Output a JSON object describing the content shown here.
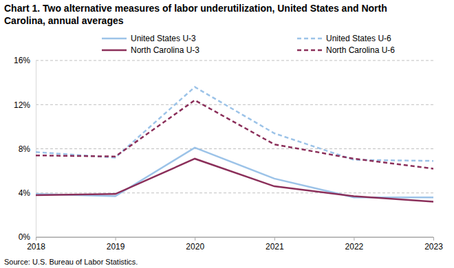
{
  "chart_data": {
    "type": "line",
    "title": "Chart 1. Two alternative measures of labor underutilization, United States and North Carolina, annual averages",
    "source": "Source: U.S. Bureau of Labor Statistics.",
    "x": [
      2018,
      2019,
      2020,
      2021,
      2022,
      2023
    ],
    "xlim": [
      2018,
      2023
    ],
    "xticks": [
      2018,
      2019,
      2020,
      2021,
      2022,
      2023
    ],
    "ylim": [
      0,
      16
    ],
    "yticks": [
      {
        "value": 0,
        "label": "0%"
      },
      {
        "value": 4,
        "label": "4%"
      },
      {
        "value": 8,
        "label": "8%"
      },
      {
        "value": 12,
        "label": "12%"
      },
      {
        "value": 16,
        "label": "16%"
      }
    ],
    "grid": true,
    "legend": "top",
    "series": [
      {
        "name": "United States U-3",
        "color": "#9cc3e8",
        "line_style": "solid",
        "values": [
          3.9,
          3.7,
          8.1,
          5.3,
          3.6,
          3.6
        ]
      },
      {
        "name": "United States U-6",
        "color": "#9cc3e8",
        "line_style": "dashed",
        "values": [
          7.7,
          7.2,
          13.6,
          9.4,
          7.0,
          6.9
        ]
      },
      {
        "name": "North Carolina U-3",
        "color": "#8b2f5a",
        "line_style": "solid",
        "values": [
          3.8,
          3.9,
          7.1,
          4.6,
          3.7,
          3.2
        ]
      },
      {
        "name": "North Carolina U-6",
        "color": "#8b2f5a",
        "line_style": "dashed",
        "values": [
          7.4,
          7.3,
          12.4,
          8.4,
          7.1,
          6.2
        ]
      }
    ]
  }
}
